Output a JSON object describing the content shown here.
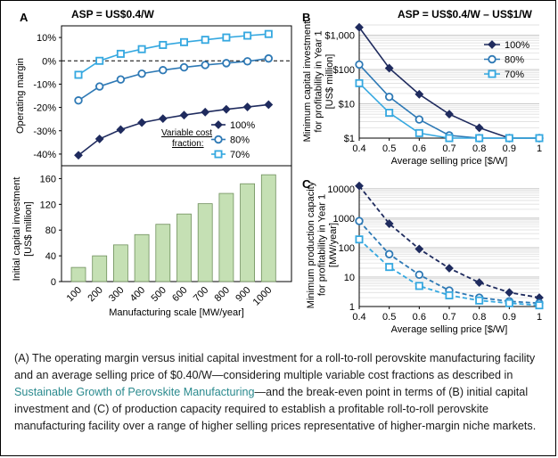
{
  "panels": {
    "A": {
      "letter": "A",
      "asp_label": "ASP = US$0.4/W",
      "legend_title": "Variable cost fraction:"
    },
    "B": {
      "letter": "B",
      "asp_label": "ASP = US$0.4/W –  US$1/W"
    },
    "C": {
      "letter": "C"
    }
  },
  "chart_data": [
    {
      "id": "A-top",
      "type": "line",
      "title": "",
      "xlabel": "",
      "ylabel": "Operating margin",
      "x": [
        100,
        200,
        300,
        400,
        500,
        600,
        700,
        800,
        900,
        1000
      ],
      "ylim": [
        -45,
        15
      ],
      "yticks": [
        "10%",
        "0%",
        "-10%",
        "-20%",
        "-30%",
        "-40%"
      ],
      "ytick_values": [
        10,
        0,
        -10,
        -20,
        -30,
        -40
      ],
      "reference_line": 0,
      "legend_title": "Variable cost fraction:",
      "series": [
        {
          "name": "100%",
          "marker": "diamond",
          "color": "#1f2b5e",
          "values": [
            -40.5,
            -33.5,
            -29.5,
            -26.5,
            -24.8,
            -23.3,
            -22,
            -20.8,
            -19.8,
            -18.8
          ]
        },
        {
          "name": "80%",
          "marker": "circle",
          "color": "#2e79b5",
          "values": [
            -17,
            -11,
            -8,
            -5.5,
            -4,
            -2.8,
            -1.8,
            -1,
            -0.2,
            1
          ]
        },
        {
          "name": "70%",
          "marker": "square",
          "color": "#35a8e0",
          "values": [
            -6,
            0,
            3,
            5,
            6.8,
            8,
            9,
            10,
            10.8,
            11.5
          ]
        }
      ]
    },
    {
      "id": "A-bottom",
      "type": "bar",
      "title": "",
      "xlabel": "Manufacturing scale [MW/year]",
      "ylabel": "Initial capital investment [US$ million]",
      "categories": [
        "100",
        "200",
        "300",
        "400",
        "500",
        "600",
        "700",
        "800",
        "900",
        "1000"
      ],
      "values": [
        22,
        40,
        57,
        73,
        89,
        105,
        121,
        137,
        152,
        166
      ],
      "ylim": [
        0,
        180
      ],
      "yticks": [
        "0",
        "40",
        "80",
        "120",
        "160"
      ],
      "ytick_values": [
        0,
        40,
        80,
        120,
        160
      ],
      "bar_color": "#c5e0b4"
    },
    {
      "id": "B",
      "type": "line",
      "title": "",
      "xlabel": "Average selling price [$/W]",
      "ylabel": "Minimum capital investment for profitability in Year 1 [US$ million]",
      "scale": "log",
      "x": [
        0.4,
        0.5,
        0.6,
        0.7,
        0.8,
        0.9,
        1.0
      ],
      "xticks": [
        "0.4",
        "0.5",
        "0.6",
        "0.7",
        "0.8",
        "0.9",
        "1"
      ],
      "ylim": [
        1,
        2000
      ],
      "yticks": [
        "$1,000",
        "$100",
        "$10",
        "$1"
      ],
      "ytick_values": [
        1000,
        100,
        10,
        1
      ],
      "series": [
        {
          "name": "100%",
          "marker": "diamond",
          "color": "#1f2b5e",
          "values": [
            1700,
            110,
            19,
            5,
            2,
            1,
            1
          ]
        },
        {
          "name": "80%",
          "marker": "circle",
          "color": "#2e79b5",
          "values": [
            140,
            16,
            3.5,
            1.2,
            1,
            1,
            1
          ]
        },
        {
          "name": "70%",
          "marker": "square",
          "color": "#35a8e0",
          "values": [
            40,
            5.5,
            1.4,
            1,
            1,
            1,
            1
          ]
        }
      ]
    },
    {
      "id": "C",
      "type": "line",
      "title": "",
      "xlabel": "Average selling price [$/W]",
      "ylabel": "Minimum production capacity for profitability in Year 1 [MW/year]",
      "scale": "log",
      "x": [
        0.4,
        0.5,
        0.6,
        0.7,
        0.8,
        0.9,
        1.0
      ],
      "xticks": [
        "0.4",
        "0.5",
        "0.6",
        "0.7",
        "0.8",
        "0.9",
        "1"
      ],
      "ylim": [
        1,
        15000
      ],
      "yticks": [
        "10000",
        "1000",
        "100",
        "10",
        "1"
      ],
      "ytick_values": [
        10000,
        1000,
        100,
        10,
        1
      ],
      "series": [
        {
          "name": "100%",
          "marker": "diamond",
          "color": "#1f2b5e",
          "values": [
            12500,
            650,
            90,
            20,
            6.5,
            3,
            2
          ]
        },
        {
          "name": "80%",
          "marker": "circle",
          "color": "#2e79b5",
          "values": [
            800,
            60,
            12,
            3.5,
            2,
            1.5,
            1.3
          ]
        },
        {
          "name": "70%",
          "marker": "square",
          "color": "#35a8e0",
          "values": [
            190,
            22,
            5,
            2.4,
            1.6,
            1.3,
            1.1
          ]
        }
      ]
    }
  ],
  "caption": {
    "part1": "(A) The operating margin versus initial capital investment for a roll-to-roll perovskite manufacturing facility and an average selling price of $0.40/W—considering multiple variable cost fractions as described in ",
    "link": "Sustainable Growth of Perovskite Manufacturing",
    "part2": "—and the break-even point in terms of (B) initial capital investment and (C) of production capacity required to establish a profitable roll-to-roll perovskite manufacturing facility over a range of higher selling prices representative of higher-margin niche markets."
  }
}
